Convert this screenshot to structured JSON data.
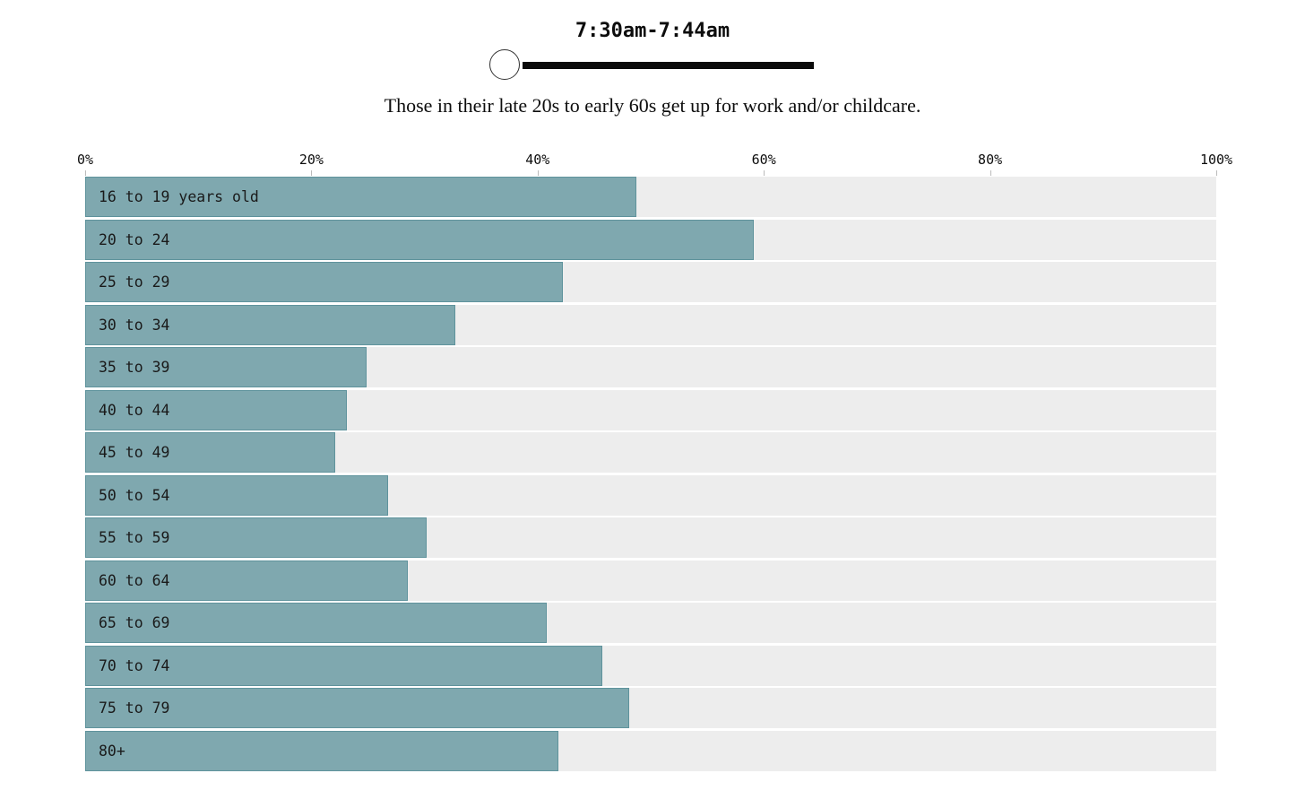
{
  "slider": {
    "label": "7:30am-7:44am"
  },
  "subtitle": "Those in their late 20s to early 60s get up for work and/or childcare.",
  "chart_data": {
    "type": "bar",
    "orientation": "horizontal",
    "title": "7:30am-7:44am",
    "subtitle": "Those in their late 20s to early 60s get up for work and/or childcare.",
    "categories": [
      "16 to 19 years old",
      "20 to 24",
      "25 to 29",
      "30 to 34",
      "35 to 39",
      "40 to 44",
      "45 to 49",
      "50 to 54",
      "55 to 59",
      "60 to 64",
      "65 to 69",
      "70 to 74",
      "75 to 79",
      "80+"
    ],
    "values": [
      48.7,
      59.1,
      42.2,
      32.7,
      24.9,
      23.1,
      22.1,
      26.8,
      30.2,
      28.5,
      40.8,
      45.7,
      48.1,
      41.8
    ],
    "xlim": [
      0,
      100
    ],
    "x_tick_labels": [
      "0%",
      "20%",
      "40%",
      "60%",
      "80%",
      "100%"
    ],
    "grid": false,
    "legend": false,
    "bar_color": "#7FA8AF",
    "bar_border_color": "#5F939C",
    "track_color": "#EDEDED"
  }
}
